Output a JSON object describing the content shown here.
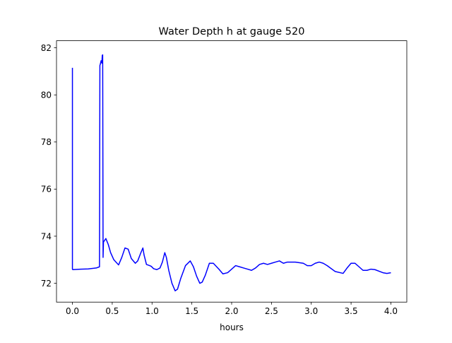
{
  "chart_data": {
    "type": "line",
    "title": "Water Depth h at gauge 520",
    "xlabel": "hours",
    "ylabel": "",
    "xlim": [
      -0.2,
      4.2
    ],
    "ylim": [
      71.2,
      82.3
    ],
    "x_ticks": [
      0.0,
      0.5,
      1.0,
      1.5,
      2.0,
      2.5,
      3.0,
      3.5,
      4.0
    ],
    "x_tick_labels": [
      "0.0",
      "0.5",
      "1.0",
      "1.5",
      "2.0",
      "2.5",
      "3.0",
      "3.5",
      "4.0"
    ],
    "y_ticks": [
      72,
      74,
      76,
      78,
      80,
      82
    ],
    "y_tick_labels": [
      "72",
      "74",
      "76",
      "78",
      "80",
      "82"
    ],
    "grid": false,
    "legend": "none",
    "series": [
      {
        "color": "#0000ff",
        "x": [
          0.0,
          0.0,
          0.005,
          0.1,
          0.2,
          0.3,
          0.34,
          0.345,
          0.35,
          0.36,
          0.37,
          0.375,
          0.38,
          0.385,
          0.39,
          0.4,
          0.42,
          0.45,
          0.48,
          0.52,
          0.58,
          0.62,
          0.66,
          0.7,
          0.74,
          0.79,
          0.82,
          0.86,
          0.885,
          0.9,
          0.93,
          0.97,
          0.99,
          1.02,
          1.06,
          1.1,
          1.13,
          1.16,
          1.18,
          1.21,
          1.25,
          1.29,
          1.32,
          1.36,
          1.42,
          1.48,
          1.52,
          1.56,
          1.6,
          1.63,
          1.67,
          1.72,
          1.77,
          1.84,
          1.89,
          1.95,
          2.0,
          2.05,
          2.1,
          2.15,
          2.2,
          2.25,
          2.3,
          2.35,
          2.4,
          2.45,
          2.5,
          2.55,
          2.6,
          2.65,
          2.7,
          2.8,
          2.9,
          2.95,
          3.0,
          3.05,
          3.1,
          3.15,
          3.2,
          3.3,
          3.4,
          3.45,
          3.5,
          3.55,
          3.6,
          3.65,
          3.7,
          3.75,
          3.8,
          3.9,
          3.95,
          4.0
        ],
        "y": [
          81.15,
          72.6,
          72.58,
          72.6,
          72.61,
          72.65,
          72.7,
          81.25,
          81.3,
          81.45,
          81.35,
          81.68,
          81.7,
          73.1,
          73.75,
          73.8,
          73.9,
          73.65,
          73.3,
          73.0,
          72.78,
          73.1,
          73.5,
          73.45,
          73.05,
          72.85,
          72.95,
          73.3,
          73.5,
          73.2,
          72.8,
          72.75,
          72.72,
          72.62,
          72.58,
          72.65,
          72.9,
          73.3,
          73.1,
          72.55,
          72.0,
          71.68,
          71.75,
          72.2,
          72.75,
          72.95,
          72.7,
          72.3,
          72.0,
          72.05,
          72.35,
          72.85,
          72.85,
          72.6,
          72.4,
          72.45,
          72.6,
          72.75,
          72.7,
          72.65,
          72.6,
          72.55,
          72.65,
          72.8,
          72.85,
          72.8,
          72.85,
          72.9,
          72.95,
          72.85,
          72.9,
          72.9,
          72.85,
          72.75,
          72.75,
          72.85,
          72.9,
          72.85,
          72.75,
          72.5,
          72.42,
          72.65,
          72.85,
          72.85,
          72.7,
          72.55,
          72.55,
          72.6,
          72.58,
          72.45,
          72.42,
          72.45
        ]
      }
    ]
  }
}
